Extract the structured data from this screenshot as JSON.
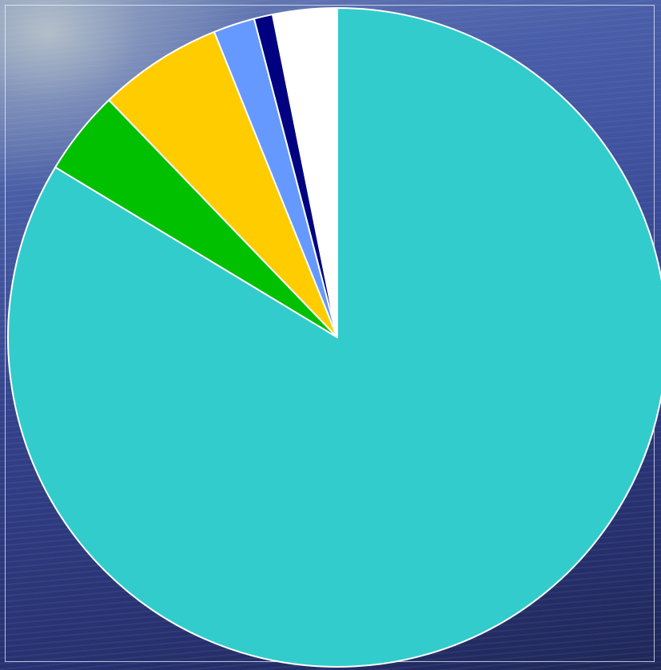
{
  "chart_data": {
    "type": "pie",
    "title": "",
    "start_angle_deg": 0,
    "direction": "clockwise",
    "slices": [
      {
        "value": 82.3,
        "color": "#33CCCC"
      },
      {
        "value": 4.1,
        "color": "#00C000"
      },
      {
        "value": 6.0,
        "color": "#FFCC00"
      },
      {
        "value": 2.0,
        "color": "#6699FF"
      },
      {
        "value": 0.9,
        "color": "#000080"
      },
      {
        "value": 3.1,
        "color": "#FFFFFF"
      }
    ],
    "slice_border_color": "#FFFFFF",
    "legend": "none",
    "data_labels": "none"
  },
  "background": {
    "style": "ocean-photo",
    "colors": [
      "#7f93b8",
      "#4a5fa6",
      "#33418a",
      "#1f2758"
    ]
  }
}
